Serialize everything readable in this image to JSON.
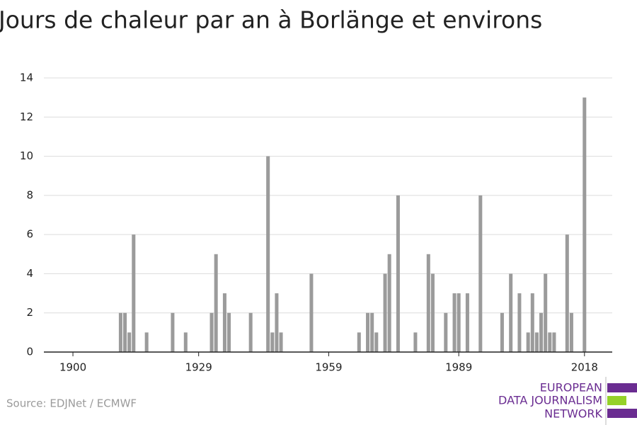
{
  "chart_data": {
    "type": "bar",
    "title": "Jours de chaleur par an à Borlänge et environs",
    "source": "Source: EDJNet / ECMWF",
    "logo": [
      "EUROPEAN",
      "DATA JOURNALISM",
      "NETWORK"
    ],
    "color": "#9b9b9b",
    "x": [
      1900,
      1901,
      1902,
      1903,
      1904,
      1905,
      1906,
      1907,
      1908,
      1909,
      1910,
      1911,
      1912,
      1913,
      1914,
      1915,
      1916,
      1917,
      1918,
      1919,
      1920,
      1921,
      1922,
      1923,
      1924,
      1925,
      1926,
      1927,
      1928,
      1929,
      1930,
      1931,
      1932,
      1933,
      1934,
      1935,
      1936,
      1937,
      1938,
      1939,
      1940,
      1941,
      1942,
      1943,
      1944,
      1945,
      1946,
      1947,
      1948,
      1949,
      1950,
      1951,
      1952,
      1953,
      1954,
      1955,
      1956,
      1957,
      1958,
      1959,
      1960,
      1961,
      1962,
      1963,
      1964,
      1965,
      1966,
      1967,
      1968,
      1969,
      1970,
      1971,
      1972,
      1973,
      1974,
      1975,
      1976,
      1977,
      1978,
      1979,
      1980,
      1981,
      1982,
      1983,
      1984,
      1985,
      1986,
      1987,
      1988,
      1989,
      1990,
      1991,
      1992,
      1993,
      1994,
      1995,
      1996,
      1997,
      1998,
      1999,
      2000,
      2001,
      2002,
      2003,
      2004,
      2005,
      2006,
      2007,
      2008,
      2009,
      2010,
      2011,
      2012,
      2013,
      2014,
      2015,
      2016,
      2017,
      2018
    ],
    "values": [
      0,
      0,
      0,
      0,
      0,
      0,
      0,
      0,
      0,
      0,
      0,
      2,
      2,
      1,
      6,
      0,
      0,
      1,
      0,
      0,
      0,
      0,
      0,
      2,
      0,
      0,
      1,
      0,
      0,
      0,
      0,
      0,
      2,
      5,
      0,
      3,
      2,
      0,
      0,
      0,
      0,
      2,
      0,
      0,
      0,
      10,
      1,
      3,
      1,
      0,
      0,
      0,
      0,
      0,
      0,
      4,
      0,
      0,
      0,
      0,
      0,
      0,
      0,
      0,
      0,
      0,
      1,
      0,
      2,
      2,
      1,
      0,
      4,
      5,
      0,
      8,
      0,
      0,
      0,
      1,
      0,
      0,
      5,
      4,
      0,
      0,
      2,
      0,
      3,
      3,
      0,
      3,
      0,
      0,
      8,
      0,
      0,
      0,
      0,
      2,
      0,
      4,
      0,
      3,
      0,
      1,
      3,
      1,
      2,
      4,
      1,
      1,
      0,
      0,
      6,
      2,
      0,
      0,
      13
    ],
    "xlim": [
      1893.3,
      2024.4
    ],
    "xticks": [
      1900,
      1929,
      1959,
      1989,
      2018
    ],
    "ylim": [
      0,
      14
    ],
    "yticks": [
      0,
      2,
      4,
      6,
      8,
      10,
      12,
      14
    ],
    "grid": true
  }
}
